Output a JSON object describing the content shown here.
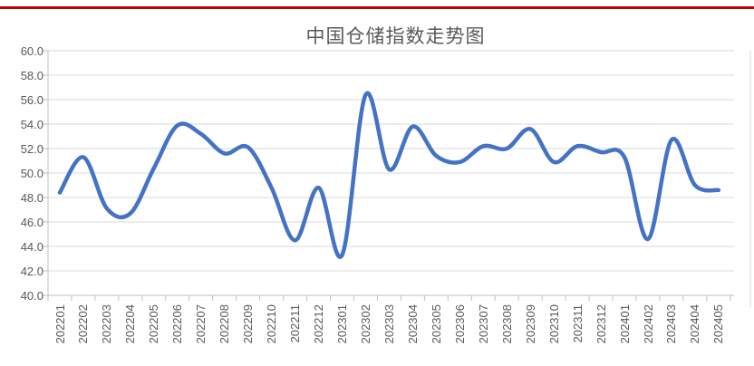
{
  "top_rule": {
    "color": "#C00000"
  },
  "chart_data": {
    "type": "line",
    "title": "中国仓储指数走势图",
    "categories": [
      "202201",
      "202202",
      "202203",
      "202204",
      "202205",
      "202206",
      "202207",
      "202208",
      "202209",
      "202210",
      "202211",
      "202212",
      "202301",
      "202302",
      "202303",
      "202304",
      "202305",
      "202306",
      "202307",
      "202308",
      "202309",
      "202310",
      "202311",
      "202312",
      "202401",
      "202402",
      "202403",
      "202404",
      "202405"
    ],
    "values": [
      48.4,
      51.3,
      47.1,
      46.7,
      50.4,
      53.9,
      53.2,
      51.6,
      52.1,
      48.8,
      44.5,
      48.8,
      43.3,
      56.4,
      50.3,
      53.8,
      51.4,
      50.9,
      52.2,
      52.0,
      53.6,
      50.9,
      52.2,
      51.7,
      51.3,
      44.6,
      52.7,
      49.0,
      48.6
    ],
    "ylim": [
      40.0,
      60.0
    ],
    "y_tick_step": 2.0,
    "y_tick_labels": [
      "60.0",
      "58.0",
      "56.0",
      "54.0",
      "52.0",
      "50.0",
      "48.0",
      "46.0",
      "44.0",
      "42.0",
      "40.0"
    ],
    "grid": "horizontal",
    "legend": "none",
    "line_smooth": true,
    "colors": {
      "line": "#4472C4",
      "gridline": "#D9D9D9",
      "axis_line": "#BFBFBF",
      "axis_text": "#595959",
      "title_text": "#595959",
      "chart_border": "#D9D9D9"
    }
  }
}
